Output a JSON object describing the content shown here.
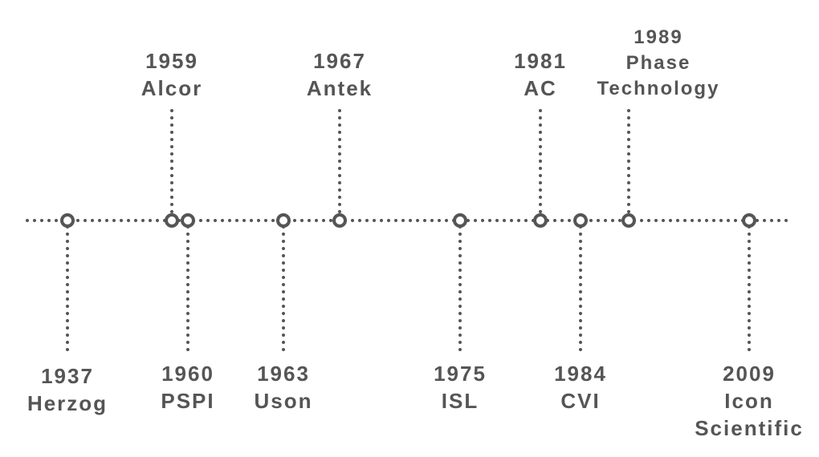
{
  "events": [
    {
      "year": "1937",
      "name": "Herzog"
    },
    {
      "year": "1959",
      "name": "Alcor"
    },
    {
      "year": "1960",
      "name": "PSPI"
    },
    {
      "year": "1963",
      "name": "Uson"
    },
    {
      "year": "1967",
      "name": "Antek"
    },
    {
      "year": "1975",
      "name": "ISL"
    },
    {
      "year": "1981",
      "name": "AC"
    },
    {
      "year": "1984",
      "name": "CVI"
    },
    {
      "year": "1989",
      "name": "Phase Technology"
    },
    {
      "year": "2009",
      "name": "Icon Scientific"
    }
  ]
}
